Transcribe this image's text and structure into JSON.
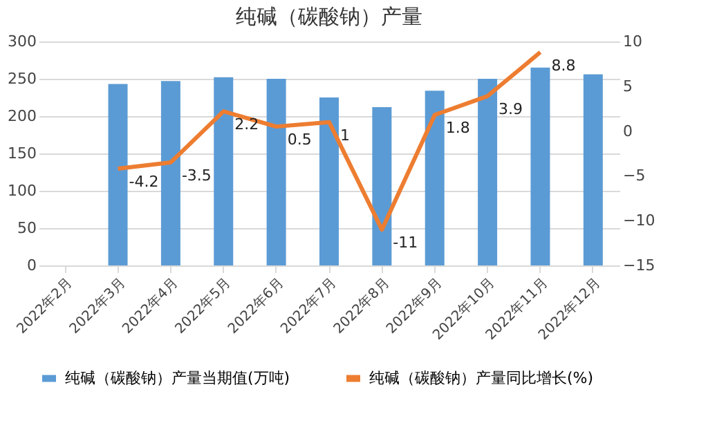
{
  "chart_data": {
    "type": "bar",
    "title": "纯碱（碳酸钠）产量",
    "categories": [
      "2022年2月",
      "2022年3月",
      "2022年4月",
      "2022年5月",
      "2022年6月",
      "2022年7月",
      "2022年8月",
      "2022年9月",
      "2022年10月",
      "2022年11月",
      "2022年12月"
    ],
    "series": [
      {
        "name": "纯碱（碳酸钠）产量当期值(万吨)",
        "color": "#5b9bd5",
        "values": [
          null,
          243,
          247,
          252,
          250,
          225,
          212,
          234,
          250,
          265,
          256
        ]
      },
      {
        "name": "纯碱（碳酸钠）产量同比增长(%)",
        "type": "line",
        "axis": "y2",
        "color": "#ed7d31",
        "values": [
          null,
          -4.2,
          -3.5,
          2.2,
          0.5,
          1,
          -11,
          1.8,
          3.9,
          8.8,
          null
        ],
        "value_labels": [
          null,
          "-4.2",
          "-3.5",
          "2.2",
          "0.5",
          "1",
          "-11",
          "1.8",
          "3.9",
          "8.8",
          null
        ]
      }
    ],
    "ylim": [
      0,
      300
    ],
    "yticks": [
      0,
      50,
      100,
      150,
      200,
      250,
      300
    ],
    "y2lim": [
      -15,
      10
    ],
    "y2ticks": [
      -15,
      -10,
      -5,
      0,
      5,
      10
    ],
    "grid": "y",
    "legend": "bottom"
  }
}
